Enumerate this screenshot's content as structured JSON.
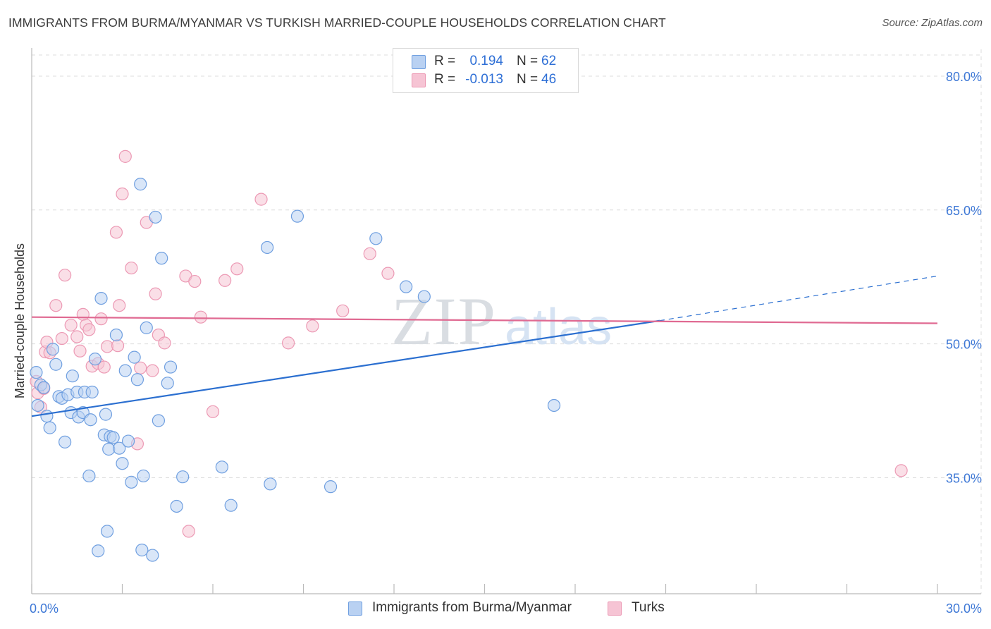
{
  "header": {
    "title": "IMMIGRANTS FROM BURMA/MYANMAR VS TURKISH MARRIED-COUPLE HOUSEHOLDS CORRELATION CHART",
    "source": "Source: ZipAtlas.com"
  },
  "watermark": {
    "zip": "ZIP",
    "atlas": "atlas"
  },
  "legend": {
    "r_label": "R =",
    "n_label": "N =",
    "items": [
      {
        "r": "0.194",
        "n": "62"
      },
      {
        "r": "-0.013",
        "n": "46"
      }
    ]
  },
  "chart_data": {
    "type": "scatter",
    "title": "IMMIGRANTS FROM BURMA/MYANMAR VS TURKISH MARRIED-COUPLE HOUSEHOLDS CORRELATION CHART",
    "xlabel": "",
    "ylabel": "Married-couple Households",
    "xlim": [
      0,
      30
    ],
    "ylim": [
      22,
      83
    ],
    "x_tick_labels": [
      "0.0%",
      "30.0%"
    ],
    "y_ticks": [
      35,
      50,
      65,
      80
    ],
    "y_tick_labels": [
      "35.0%",
      "50.0%",
      "65.0%",
      "80.0%"
    ],
    "grid": true,
    "legend_position": "top-center",
    "series": [
      {
        "name": "Immigrants from Burma/Myanmar",
        "color": "#6f9fe0",
        "fill": "#b9d1f2",
        "line_color": "#2b6fd0",
        "r": 0.194,
        "n": 62,
        "trend": {
          "x0": 0,
          "y0": 41.9,
          "x1": 20.8,
          "y1": 52.6,
          "x_dash_end": 30,
          "y_dash_end": 57.6
        },
        "points": [
          [
            0.2,
            43.1
          ],
          [
            0.15,
            46.8
          ],
          [
            0.3,
            45.4
          ],
          [
            0.4,
            45.1
          ],
          [
            0.5,
            41.9
          ],
          [
            0.6,
            40.6
          ],
          [
            0.7,
            49.4
          ],
          [
            0.8,
            47.7
          ],
          [
            0.9,
            44.1
          ],
          [
            1.0,
            43.9
          ],
          [
            1.1,
            39.0
          ],
          [
            1.2,
            44.3
          ],
          [
            1.3,
            42.3
          ],
          [
            1.35,
            46.4
          ],
          [
            1.5,
            44.6
          ],
          [
            1.55,
            41.8
          ],
          [
            1.7,
            42.3
          ],
          [
            1.75,
            44.6
          ],
          [
            1.9,
            35.2
          ],
          [
            1.95,
            41.5
          ],
          [
            2.0,
            44.6
          ],
          [
            2.1,
            48.3
          ],
          [
            2.2,
            26.8
          ],
          [
            2.3,
            55.1
          ],
          [
            2.4,
            39.8
          ],
          [
            2.45,
            42.1
          ],
          [
            2.5,
            29.0
          ],
          [
            2.55,
            38.2
          ],
          [
            2.6,
            39.6
          ],
          [
            2.7,
            39.5
          ],
          [
            2.8,
            51.0
          ],
          [
            2.9,
            38.3
          ],
          [
            3.0,
            36.6
          ],
          [
            3.1,
            47.0
          ],
          [
            3.2,
            39.1
          ],
          [
            3.3,
            34.5
          ],
          [
            3.4,
            48.5
          ],
          [
            3.5,
            46.0
          ],
          [
            3.6,
            67.9
          ],
          [
            3.65,
            26.9
          ],
          [
            3.7,
            35.2
          ],
          [
            3.8,
            51.8
          ],
          [
            4.0,
            26.3
          ],
          [
            4.1,
            64.2
          ],
          [
            4.2,
            41.4
          ],
          [
            4.3,
            59.6
          ],
          [
            4.5,
            45.6
          ],
          [
            4.6,
            47.4
          ],
          [
            4.8,
            31.8
          ],
          [
            5.0,
            35.1
          ],
          [
            6.3,
            36.2
          ],
          [
            6.6,
            31.9
          ],
          [
            7.8,
            60.8
          ],
          [
            7.9,
            34.3
          ],
          [
            8.8,
            64.3
          ],
          [
            9.9,
            34.0
          ],
          [
            11.4,
            61.8
          ],
          [
            12.4,
            56.4
          ],
          [
            13.0,
            55.3
          ],
          [
            17.3,
            43.1
          ]
        ]
      },
      {
        "name": "Turks",
        "color": "#ec99b4",
        "fill": "#f6c4d4",
        "line_color": "#e06a92",
        "r": -0.013,
        "n": 46,
        "trend": {
          "x0": 0,
          "y0": 53.0,
          "x1": 30,
          "y1": 52.3
        },
        "points": [
          [
            0.15,
            45.8
          ],
          [
            0.2,
            44.5
          ],
          [
            0.3,
            42.9
          ],
          [
            0.4,
            45.0
          ],
          [
            0.45,
            49.1
          ],
          [
            0.5,
            50.2
          ],
          [
            0.6,
            49.0
          ],
          [
            0.8,
            54.3
          ],
          [
            1.0,
            50.6
          ],
          [
            1.1,
            57.7
          ],
          [
            1.3,
            52.1
          ],
          [
            1.5,
            50.8
          ],
          [
            1.6,
            49.2
          ],
          [
            1.7,
            53.3
          ],
          [
            1.8,
            52.1
          ],
          [
            1.9,
            51.6
          ],
          [
            2.0,
            47.5
          ],
          [
            2.2,
            47.8
          ],
          [
            2.3,
            52.8
          ],
          [
            2.4,
            47.4
          ],
          [
            2.5,
            49.7
          ],
          [
            2.8,
            62.5
          ],
          [
            2.85,
            49.8
          ],
          [
            2.9,
            54.3
          ],
          [
            3.0,
            66.8
          ],
          [
            3.1,
            71.0
          ],
          [
            3.3,
            58.5
          ],
          [
            3.5,
            38.8
          ],
          [
            3.6,
            47.3
          ],
          [
            3.8,
            63.6
          ],
          [
            4.0,
            47.0
          ],
          [
            4.1,
            55.6
          ],
          [
            4.2,
            51.0
          ],
          [
            4.4,
            50.1
          ],
          [
            5.1,
            57.6
          ],
          [
            5.2,
            29.0
          ],
          [
            5.4,
            57.0
          ],
          [
            5.6,
            53.0
          ],
          [
            6.0,
            42.4
          ],
          [
            6.4,
            57.1
          ],
          [
            6.8,
            58.4
          ],
          [
            7.6,
            66.2
          ],
          [
            8.5,
            50.1
          ],
          [
            9.3,
            52.0
          ],
          [
            10.3,
            53.7
          ],
          [
            11.2,
            60.1
          ],
          [
            11.8,
            57.9
          ],
          [
            28.8,
            35.8
          ]
        ]
      }
    ]
  },
  "bottom_legend": {
    "items": [
      {
        "label": "Immigrants from Burma/Myanmar"
      },
      {
        "label": "Turks"
      }
    ]
  }
}
